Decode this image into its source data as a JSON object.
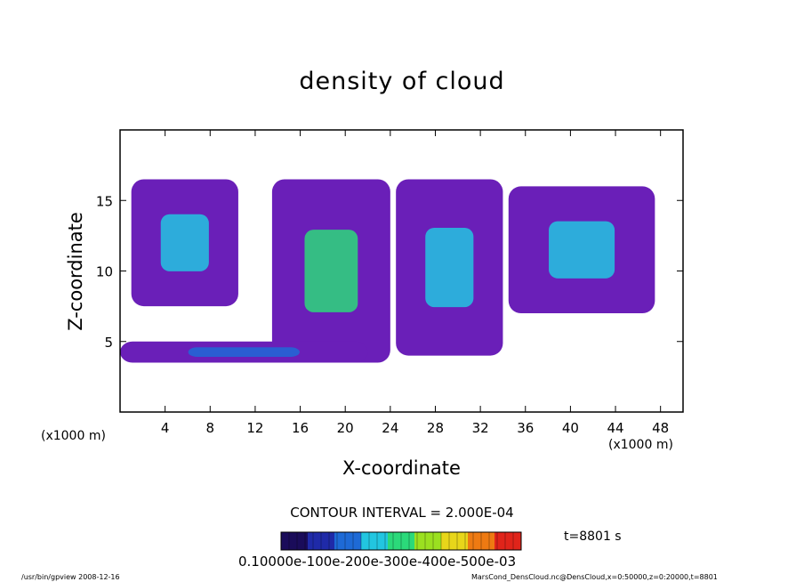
{
  "chart_data": {
    "type": "heatmap",
    "title": "density of cloud",
    "xlabel": "X-coordinate",
    "ylabel": "Z-coordinate",
    "x_unit": "(x1000 m)",
    "y_unit": "(x1000 m)",
    "xlim": [
      0,
      50
    ],
    "ylim": [
      0,
      20
    ],
    "x_ticks": [
      4,
      8,
      12,
      16,
      20,
      24,
      28,
      32,
      36,
      40,
      44,
      48
    ],
    "y_ticks": [
      5,
      10,
      15
    ],
    "contour_interval": "CONTOUR INTERVAL = 2.000E-04",
    "time_label": "t=8801 s",
    "colorbar_labels": "0.10000e-100e-200e-300e-400e-500e-03",
    "colors": [
      "#1a0c5a",
      "#1f2aa8",
      "#1e6ad6",
      "#22c6e0",
      "#2bd97a",
      "#9be020",
      "#e8d61a",
      "#ee7a12",
      "#e0241a"
    ],
    "cloud_regions": [
      {
        "x": [
          1,
          10.5
        ],
        "z": [
          7.5,
          16.5
        ],
        "peak": 0.00055
      },
      {
        "x": [
          13.5,
          24
        ],
        "z": [
          3.5,
          16.5
        ],
        "peak": 0.0011
      },
      {
        "x": [
          24.5,
          34
        ],
        "z": [
          4,
          16.5
        ],
        "peak": 0.0008
      },
      {
        "x": [
          34.5,
          47.5
        ],
        "z": [
          7,
          16
        ],
        "peak": 0.0006
      },
      {
        "x": [
          0,
          22
        ],
        "z": [
          3.5,
          5
        ],
        "peak": 0.0003
      }
    ]
  },
  "footer": {
    "left": "/usr/bin/gpview   2008-12-16",
    "right": "MarsCond_DensCloud.nc@DensCloud,x=0:50000,z=0:20000,t=8801"
  }
}
